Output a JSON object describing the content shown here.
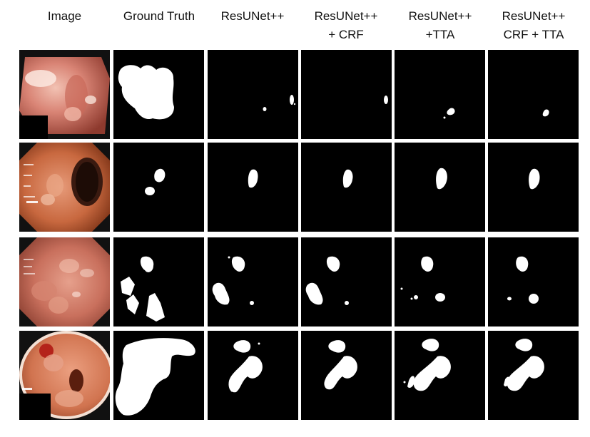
{
  "figure": {
    "column_headers": [
      {
        "label": "Image"
      },
      {
        "label": "Ground Truth"
      },
      {
        "label": "ResUNet++"
      },
      {
        "label": "ResUNet++\n+ CRF"
      },
      {
        "label": "ResUNet++\n+TTA"
      },
      {
        "label": "ResUNet++\nCRF + TTA"
      }
    ]
  },
  "colors": {
    "background": "#ffffff",
    "mask_background": "#000000",
    "mask_foreground": "#ffffff",
    "tissue_light": "#e9a093",
    "tissue_dark": "#b04a3c"
  }
}
